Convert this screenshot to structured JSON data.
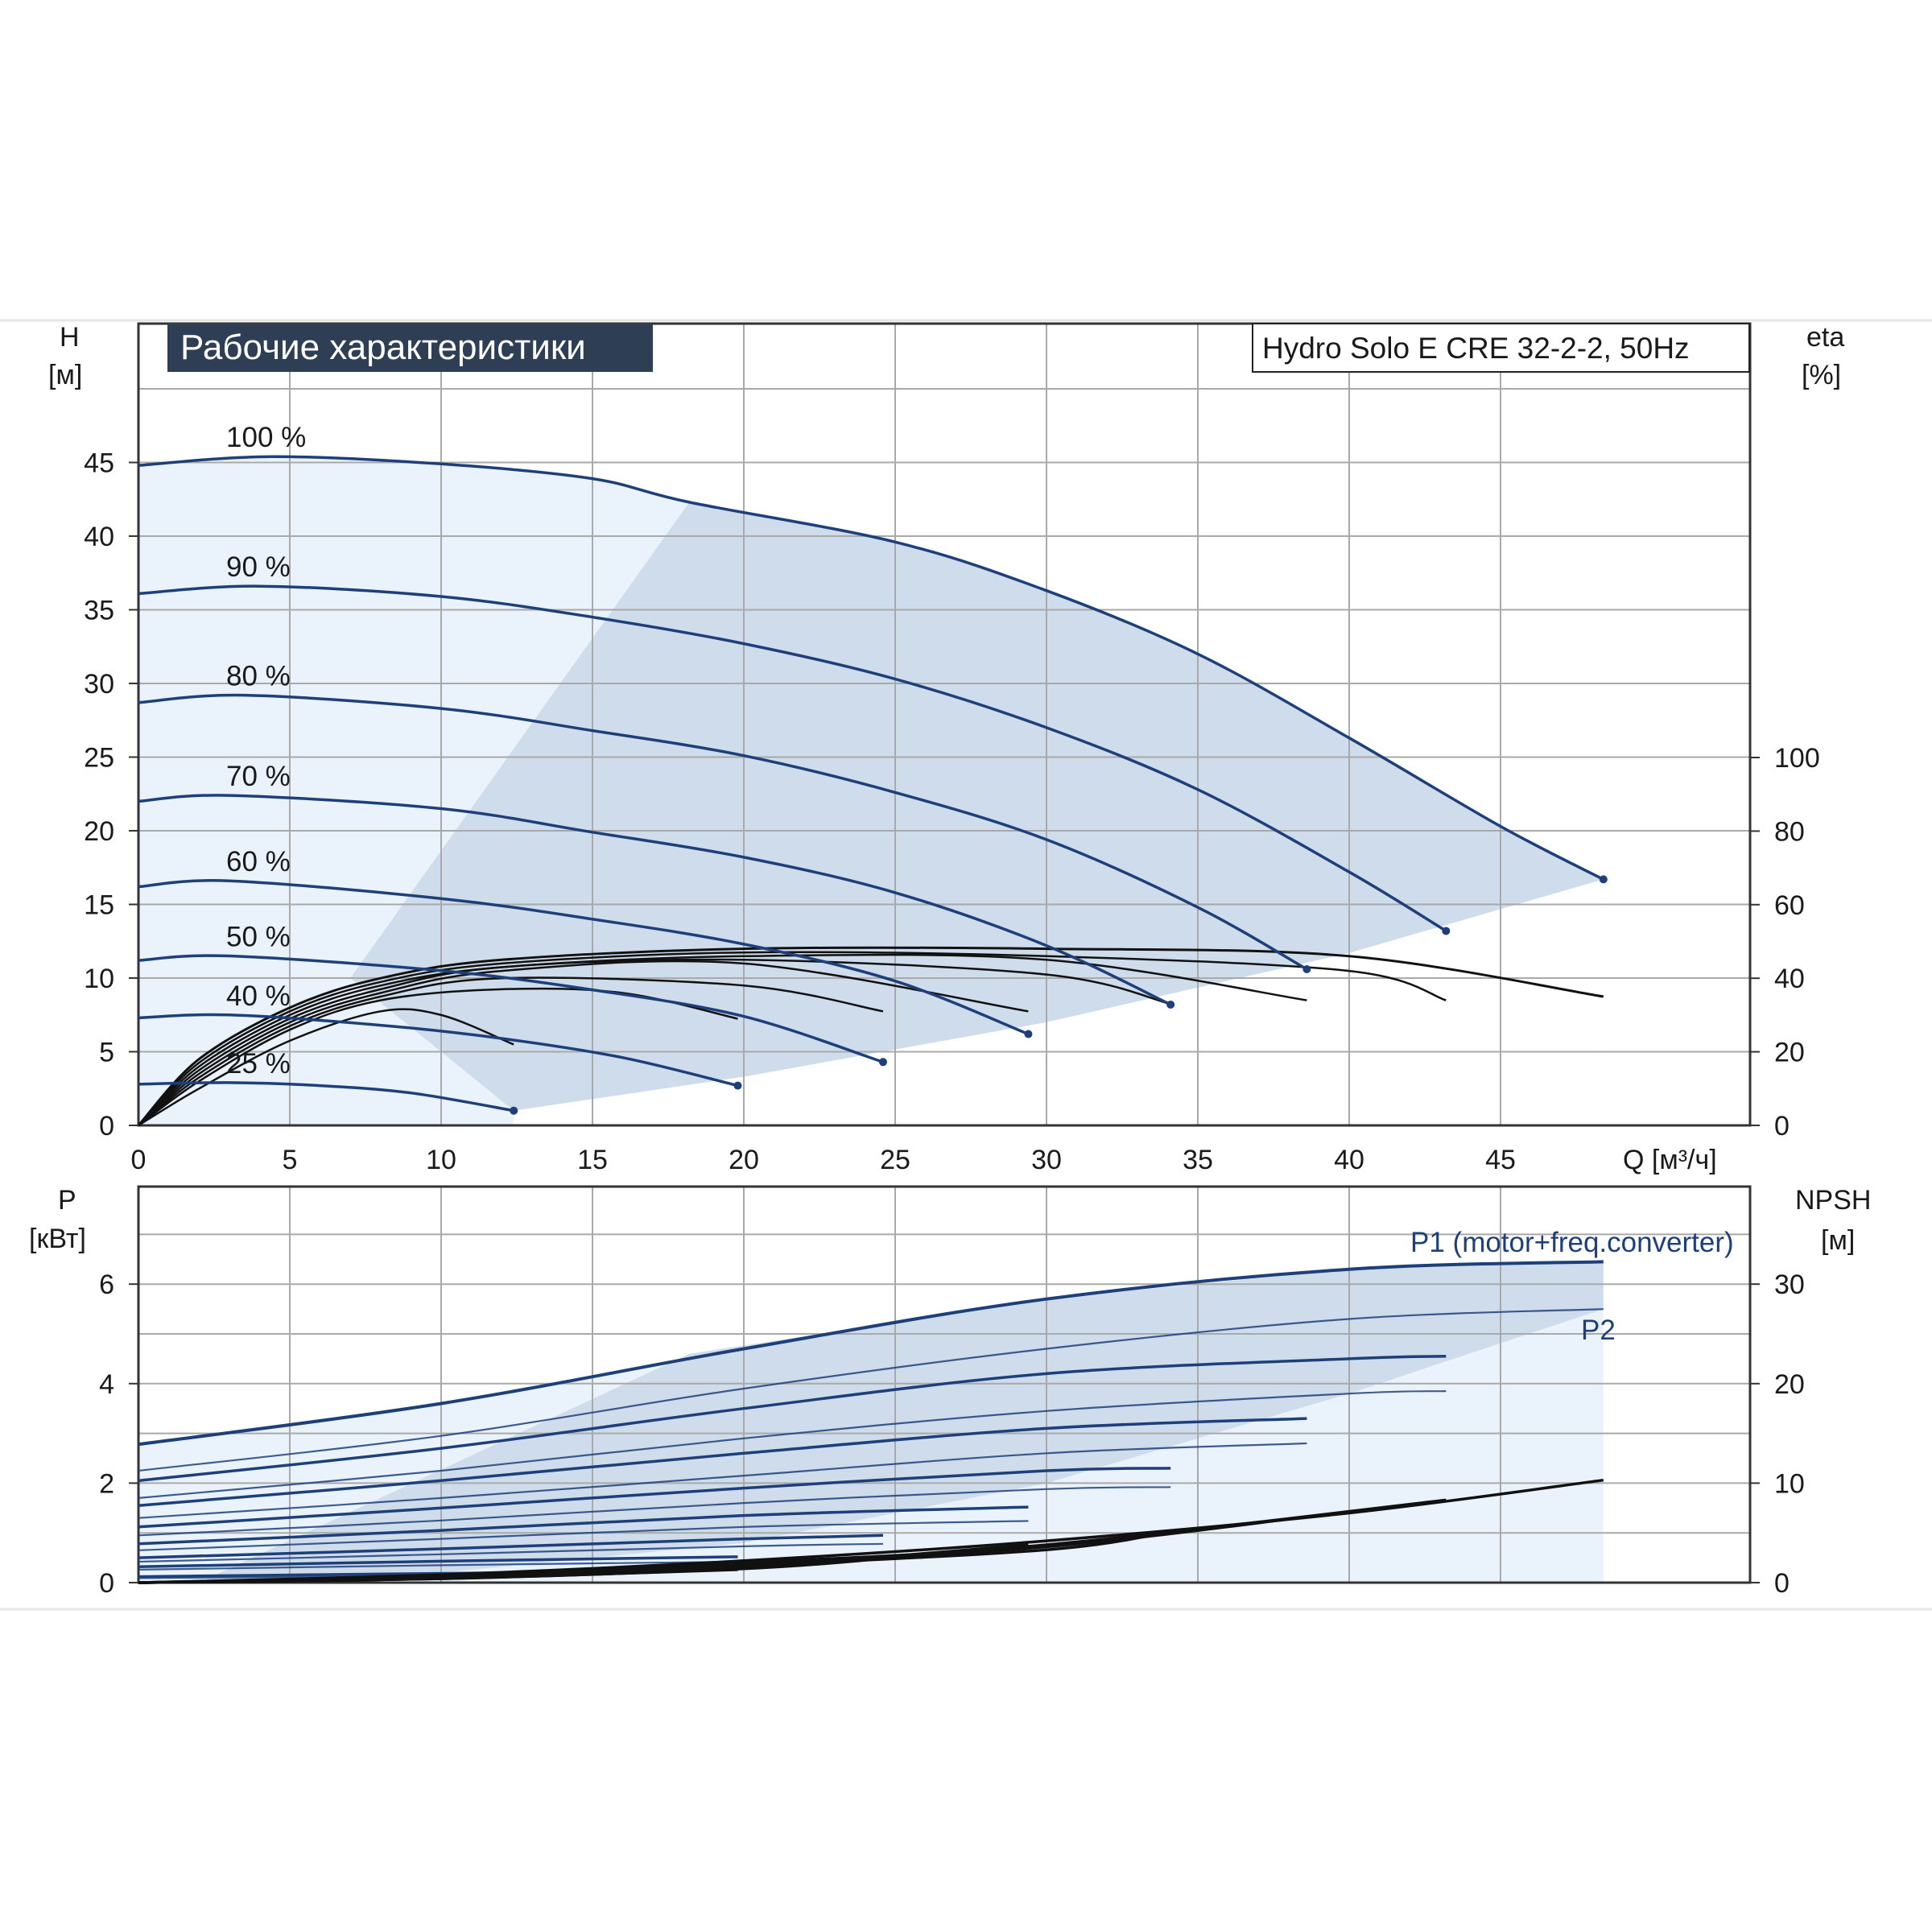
{
  "title_banner": "Рабочие характеристики",
  "model_label": "Hydro Solo E CRE 32-2-2, 50Hz",
  "colors": {
    "banner_bg": "#2e3f55",
    "banner_text": "#ffffff",
    "curve_blue": "#1d3f7a",
    "curve_black": "#111111",
    "region_light": "#eaf3fb",
    "region_mid": "#cfdceb",
    "grid": "#a9a9a9"
  },
  "chart_data": [
    {
      "type": "line",
      "panel": "head",
      "ylabel_line1": "H",
      "ylabel_line2": "[м]",
      "y2label_line1": "eta",
      "y2label_line2": "[%]",
      "xlabel": "Q [м³/ч]",
      "x_ticks": [
        0,
        5,
        10,
        15,
        20,
        25,
        30,
        35,
        40,
        45
      ],
      "y_ticks": [
        0,
        5,
        10,
        15,
        20,
        25,
        30,
        35,
        40,
        45
      ],
      "y2_ticks": [
        0,
        20,
        40,
        60,
        80,
        100
      ],
      "xlim": [
        0,
        53
      ],
      "ylim": [
        0,
        50
      ],
      "grid": true,
      "series": [
        {
          "name": "100 %",
          "x": [
            0,
            4.4,
            10,
            15,
            18.2,
            25,
            30,
            35,
            40,
            45,
            48.4
          ],
          "y": [
            44.8,
            45.4,
            44.9,
            43.9,
            42.3,
            39.6,
            36.3,
            32.0,
            26.3,
            20.3,
            16.7
          ]
        },
        {
          "name": "90 %",
          "x": [
            0,
            4,
            10,
            15,
            20,
            25,
            30,
            35,
            40,
            43.2
          ],
          "y": [
            36.1,
            36.6,
            35.9,
            34.5,
            32.7,
            30.3,
            27.0,
            22.8,
            17.2,
            13.2
          ]
        },
        {
          "name": "80 %",
          "x": [
            0,
            3.5,
            10,
            15,
            20,
            25,
            30,
            35,
            38.6
          ],
          "y": [
            28.7,
            29.2,
            28.3,
            26.8,
            25.1,
            22.6,
            19.4,
            14.8,
            10.6
          ]
        },
        {
          "name": "70 %",
          "x": [
            0,
            3,
            10,
            15,
            20,
            25,
            30,
            34.1
          ],
          "y": [
            22.0,
            22.4,
            21.5,
            19.9,
            18.2,
            15.8,
            12.2,
            8.2
          ]
        },
        {
          "name": "60 %",
          "x": [
            0,
            3,
            10,
            15,
            20,
            25,
            29.4
          ],
          "y": [
            16.2,
            16.6,
            15.4,
            14.0,
            12.3,
            9.8,
            6.2
          ]
        },
        {
          "name": "50 %",
          "x": [
            0,
            3,
            10,
            15,
            20,
            24.6
          ],
          "y": [
            11.2,
            11.5,
            10.5,
            9.2,
            7.4,
            4.3
          ]
        },
        {
          "name": "40 %",
          "x": [
            0,
            3,
            8,
            12,
            16,
            19.8
          ],
          "y": [
            7.3,
            7.5,
            6.8,
            5.9,
            4.6,
            2.7
          ]
        },
        {
          "name": "25 %",
          "x": [
            0,
            3,
            6,
            9,
            12.4
          ],
          "y": [
            2.8,
            2.9,
            2.7,
            2.2,
            1.0
          ]
        }
      ],
      "eta_series": [
        {
          "x": [
            0,
            2,
            5,
            8,
            12,
            20,
            30,
            40,
            48.4
          ],
          "y": [
            0,
            18,
            32,
            40,
            45,
            48,
            48,
            46,
            35
          ]
        },
        {
          "x": [
            0,
            2,
            5,
            8,
            12,
            20,
            30,
            40,
            43.2
          ],
          "y": [
            0,
            17,
            31,
            39,
            44,
            47,
            46,
            42,
            34
          ]
        },
        {
          "x": [
            0,
            2,
            5,
            8,
            12,
            20,
            30,
            38.6
          ],
          "y": [
            0,
            16,
            30,
            38,
            43,
            46,
            45,
            34
          ]
        },
        {
          "x": [
            0,
            2,
            5,
            8,
            12,
            20,
            30,
            34.1
          ],
          "y": [
            0,
            15,
            29,
            37,
            43,
            45,
            41,
            33
          ]
        },
        {
          "x": [
            0,
            2,
            5,
            8,
            12,
            20,
            29.4
          ],
          "y": [
            0,
            14,
            28,
            36,
            42,
            44,
            31
          ]
        },
        {
          "x": [
            0,
            2,
            5,
            8,
            12,
            20,
            24.6
          ],
          "y": [
            0,
            13,
            27,
            35,
            40,
            38,
            31
          ]
        },
        {
          "x": [
            0,
            2,
            5,
            8,
            12,
            16,
            19.8
          ],
          "y": [
            0,
            12,
            26,
            34,
            37,
            36,
            29
          ]
        },
        {
          "x": [
            0,
            2,
            5,
            8,
            10,
            12.4
          ],
          "y": [
            0,
            10,
            23,
            31,
            30,
            22
          ]
        }
      ],
      "region": {
        "upper_x": [
          0,
          4.4,
          10,
          15,
          18.2,
          25,
          30,
          35,
          40,
          45,
          48.4
        ],
        "upper_y": [
          44.8,
          45.4,
          44.9,
          43.9,
          42.3,
          39.6,
          36.3,
          32.0,
          26.3,
          20.3,
          16.7
        ],
        "lower_x": [
          48.4,
          40,
          30,
          20,
          12.4,
          6,
          3,
          0
        ],
        "lower_y": [
          16.7,
          11.7,
          7.0,
          3.3,
          1.0,
          2.7,
          2.9,
          2.8
        ]
      },
      "region_boundary": {
        "x": [
          7,
          18.2
        ],
        "y": [
          10,
          42.3
        ]
      }
    },
    {
      "type": "line",
      "panel": "power",
      "ylabel_line1": "P",
      "ylabel_line2": "[кВт]",
      "y2label_line1": "NPSH",
      "y2label_line2": "[м]",
      "y_ticks": [
        0,
        2,
        4,
        6
      ],
      "y2_ticks": [
        0,
        10,
        20,
        30
      ],
      "xlim": [
        0,
        53
      ],
      "ylim": [
        0,
        8
      ],
      "grid": true,
      "legend_p1": "P1 (motor+freq.converter)",
      "legend_p2": "P2",
      "p1_series": [
        {
          "x": [
            0,
            10,
            20,
            30,
            40,
            48.4
          ],
          "y": [
            2.78,
            3.6,
            4.7,
            5.7,
            6.3,
            6.45
          ]
        },
        {
          "x": [
            0,
            10,
            20,
            30,
            40,
            43.2
          ],
          "y": [
            2.05,
            2.7,
            3.5,
            4.2,
            4.5,
            4.55
          ]
        },
        {
          "x": [
            0,
            10,
            20,
            30,
            38.6
          ],
          "y": [
            1.55,
            2.05,
            2.6,
            3.1,
            3.3
          ]
        },
        {
          "x": [
            0,
            10,
            20,
            30,
            34.1
          ],
          "y": [
            1.12,
            1.5,
            1.9,
            2.25,
            2.3
          ]
        },
        {
          "x": [
            0,
            10,
            20,
            29.4
          ],
          "y": [
            0.78,
            1.05,
            1.35,
            1.52
          ]
        },
        {
          "x": [
            0,
            10,
            20,
            24.6
          ],
          "y": [
            0.5,
            0.68,
            0.88,
            0.95
          ]
        },
        {
          "x": [
            0,
            10,
            19.8
          ],
          "y": [
            0.32,
            0.43,
            0.52
          ]
        },
        {
          "x": [
            0,
            6,
            12.4
          ],
          "y": [
            0.12,
            0.16,
            0.2
          ]
        }
      ],
      "p2_series": [
        {
          "x": [
            0,
            10,
            20,
            30,
            40,
            48.4
          ],
          "y": [
            2.25,
            2.95,
            3.9,
            4.7,
            5.3,
            5.5
          ]
        },
        {
          "x": [
            0,
            10,
            20,
            30,
            40,
            43.2
          ],
          "y": [
            1.7,
            2.25,
            2.9,
            3.45,
            3.8,
            3.85
          ]
        },
        {
          "x": [
            0,
            10,
            20,
            30,
            38.6
          ],
          "y": [
            1.3,
            1.7,
            2.15,
            2.6,
            2.8
          ]
        },
        {
          "x": [
            0,
            10,
            20,
            30,
            34.1
          ],
          "y": [
            0.95,
            1.25,
            1.6,
            1.88,
            1.92
          ]
        },
        {
          "x": [
            0,
            10,
            20,
            29.4
          ],
          "y": [
            0.65,
            0.88,
            1.12,
            1.24
          ]
        },
        {
          "x": [
            0,
            10,
            20,
            24.6
          ],
          "y": [
            0.42,
            0.57,
            0.73,
            0.78
          ]
        },
        {
          "x": [
            0,
            10,
            19.8
          ],
          "y": [
            0.26,
            0.35,
            0.42
          ]
        },
        {
          "x": [
            0,
            6,
            12.4
          ],
          "y": [
            0.09,
            0.12,
            0.15
          ]
        }
      ],
      "npsh_series": [
        {
          "x": [
            0,
            10,
            20,
            30,
            40,
            48.4
          ],
          "y": [
            0,
            0.8,
            2.2,
            4.2,
            7.0,
            10.3
          ]
        },
        {
          "x": [
            0,
            10,
            20,
            30,
            43.2
          ],
          "y": [
            0,
            0.7,
            2.0,
            3.8,
            8.3
          ]
        },
        {
          "x": [
            0,
            10,
            20,
            30,
            38.6
          ],
          "y": [
            0,
            0.6,
            1.8,
            3.6,
            6.6
          ]
        },
        {
          "x": [
            0,
            10,
            20,
            30,
            34.1
          ],
          "y": [
            0,
            0.5,
            1.7,
            3.3,
            5.1
          ]
        },
        {
          "x": [
            0,
            10,
            20,
            29.4
          ],
          "y": [
            0,
            0.5,
            1.6,
            3.8
          ]
        },
        {
          "x": [
            0,
            10,
            20,
            24.6
          ],
          "y": [
            0,
            0.4,
            1.4,
            2.4
          ]
        },
        {
          "x": [
            0,
            10,
            19.8
          ],
          "y": [
            0,
            0.4,
            1.3
          ]
        },
        {
          "x": [
            0,
            6,
            12.4
          ],
          "y": [
            0,
            0.2,
            0.6
          ]
        }
      ],
      "region": {
        "upper_x": [
          0,
          10,
          20,
          30,
          40,
          48.4
        ],
        "upper_y": [
          2.78,
          3.6,
          4.7,
          5.7,
          6.3,
          6.45
        ],
        "lower_x": [
          48.4,
          40,
          30,
          20,
          10,
          0
        ],
        "lower_y": [
          5.5,
          3.8,
          2.0,
          0.8,
          0.2,
          0.0
        ]
      },
      "region_boundary": {
        "x": [
          2,
          18.2
        ],
        "y": [
          0,
          4.6
        ]
      }
    }
  ]
}
